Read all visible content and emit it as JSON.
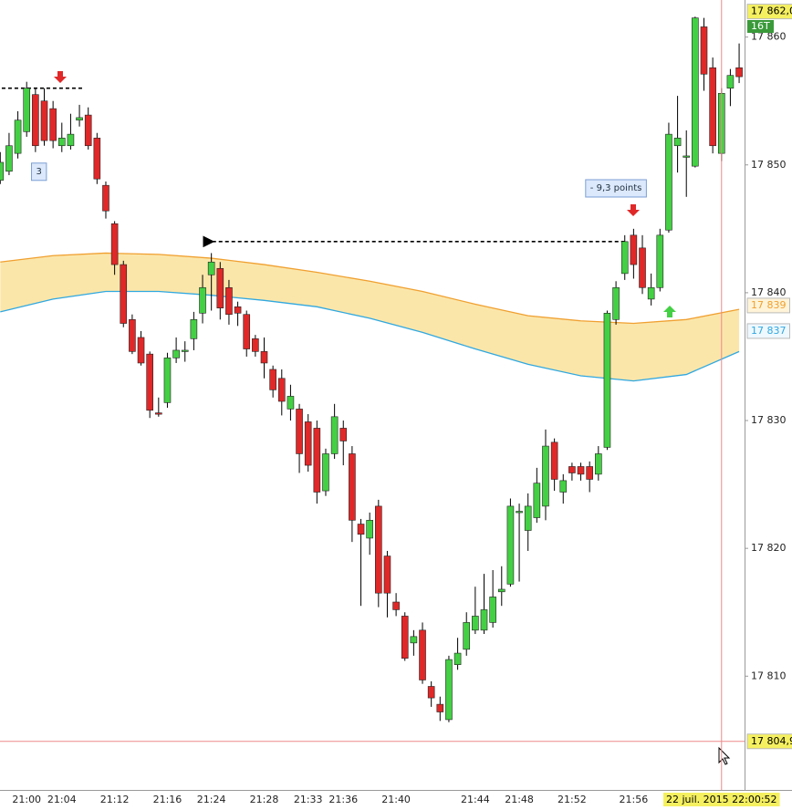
{
  "chart_data": {
    "type": "candlestick",
    "categories": [
      null,
      null,
      null,
      "21:00",
      null,
      null,
      null,
      "21:04",
      null,
      null,
      null,
      null,
      null,
      "21:12",
      null,
      null,
      null,
      null,
      null,
      "21:16",
      null,
      null,
      null,
      null,
      "21:24",
      null,
      null,
      null,
      null,
      null,
      "21:28",
      null,
      null,
      null,
      null,
      "21:33",
      null,
      null,
      null,
      "21:36",
      null,
      null,
      null,
      null,
      null,
      "21:40",
      null,
      null,
      null,
      null,
      null,
      null,
      null,
      null,
      "21:44",
      null,
      null,
      null,
      null,
      "21:48",
      null,
      null,
      null,
      null,
      null,
      "21:52",
      null,
      null,
      null,
      null,
      null,
      null,
      "21:56",
      null,
      null,
      null,
      null,
      null,
      null,
      null,
      null,
      null,
      null,
      null,
      null
    ],
    "open": [
      17848.8,
      17849.5,
      17850.9,
      17852.6,
      17855.5,
      17855,
      17854.4,
      17851.5,
      17851.5,
      17853.5,
      17853.9,
      17852.1,
      17848.4,
      17845.4,
      17842.2,
      17837.9,
      17836.5,
      17835.2,
      17830.6,
      17831.4,
      17834.9,
      17835.4,
      17836.4,
      17838.4,
      17841.4,
      17841.9,
      17840.4,
      17838.9,
      17838.3,
      17836.4,
      17835.4,
      17834,
      17833.3,
      17830.9,
      17830.9,
      17829.9,
      17829.4,
      17824.5,
      17827.4,
      17829.4,
      17827.4,
      17821.9,
      17820.8,
      17823.3,
      17819.4,
      17815.8,
      17814.7,
      17812.6,
      17813.6,
      17809.2,
      17807.8,
      17806.6,
      17810.9,
      17812.1,
      17813.6,
      17813.6,
      17814.2,
      17816.6,
      17817.2,
      17822.8,
      17821.4,
      17822.4,
      17823.3,
      17828.3,
      17824.4,
      17826.4,
      17826.4,
      17826.4,
      17825.8,
      17827.9,
      17837.9,
      17841.5,
      17844.5,
      17843.5,
      17839.5,
      17840.4,
      17844.9,
      17851.5,
      17850.6,
      17849.9,
      17860.8,
      17857.6,
      17850.9,
      17856,
      17857.6
    ],
    "high": [
      17851,
      17852.5,
      17854.2,
      17856.5,
      17856,
      17856,
      17855,
      17853.3,
      17854,
      17854.7,
      17854.5,
      17852.5,
      17848.7,
      17845.6,
      17842.5,
      17838.3,
      17837,
      17835.4,
      17831.8,
      17835.3,
      17836.5,
      17836.2,
      17838.5,
      17841.4,
      17843.1,
      17842.4,
      17841,
      17839.3,
      17838.6,
      17836.7,
      17836.5,
      17834.3,
      17834,
      17832.8,
      17831.3,
      17830.5,
      17830,
      17827.8,
      17831.3,
      17830,
      17828,
      17822.3,
      17822.8,
      17823.8,
      17819.8,
      17816.5,
      17815,
      17813.6,
      17814.2,
      17809.6,
      17808.4,
      17811.6,
      17813,
      17815,
      17817,
      17818,
      17818.3,
      17818.6,
      17823.9,
      17823.5,
      17824.3,
      17826.3,
      17829.3,
      17828.6,
      17825.8,
      17826.7,
      17826.7,
      17826.8,
      17828,
      17838.6,
      17840.9,
      17844.5,
      17845,
      17844.5,
      17841.5,
      17845,
      17853.3,
      17855.4,
      17852.7,
      17861.6,
      17861.5,
      17858.4,
      17856,
      17857.5,
      17859.5
    ],
    "low": [
      17848.5,
      17849.2,
      17850.5,
      17852.2,
      17851,
      17851.5,
      17851.3,
      17851,
      17851.2,
      17853,
      17851.2,
      17848.5,
      17845.8,
      17841.4,
      17837.3,
      17835.2,
      17834.3,
      17830.2,
      17830.3,
      17831,
      17834.5,
      17834.6,
      17835.5,
      17837.6,
      17838.6,
      17837.9,
      17837.5,
      17837.4,
      17835,
      17835,
      17833.3,
      17831.8,
      17830.4,
      17830,
      17825.9,
      17826,
      17823.5,
      17824.1,
      17827,
      17826.5,
      17820.5,
      17815.5,
      17819.5,
      17815.4,
      17814.6,
      17814.7,
      17811.2,
      17811.6,
      17809.4,
      17807.6,
      17806.5,
      17806.4,
      17810.5,
      17811.6,
      17813.3,
      17813.3,
      17813.8,
      17815.5,
      17817,
      17817.4,
      17819.8,
      17822,
      17822.2,
      17824.5,
      17823.5,
      17825.3,
      17825.3,
      17824.4,
      17825.3,
      17827.7,
      17837.5,
      17841,
      17841.1,
      17839.9,
      17839,
      17840.1,
      17844.7,
      17849.4,
      17847.5,
      17849.8,
      17855.8,
      17850.9,
      17850.3,
      17854.6,
      17856.4
    ],
    "close": [
      17850.2,
      17851.5,
      17853.5,
      17856,
      17851.5,
      17851.9,
      17851.9,
      17852.1,
      17852.4,
      17853.7,
      17851.5,
      17848.9,
      17846.4,
      17842.2,
      17837.6,
      17835.4,
      17834.5,
      17830.8,
      17830.5,
      17834.9,
      17835.5,
      17835.5,
      17837.9,
      17840.4,
      17842.4,
      17838.8,
      17838.3,
      17838.4,
      17835.6,
      17835.4,
      17834.5,
      17832.4,
      17831.5,
      17831.9,
      17827.4,
      17826.5,
      17824.4,
      17827.4,
      17830.3,
      17828.4,
      17822.2,
      17821.1,
      17822.2,
      17816.5,
      17816.5,
      17815.2,
      17811.4,
      17813.1,
      17809.7,
      17808.3,
      17807.2,
      17811.3,
      17811.8,
      17814.2,
      17814.7,
      17815.2,
      17816.2,
      17816.8,
      17823.3,
      17822.9,
      17823.3,
      17825.1,
      17828,
      17825.4,
      17825.3,
      17825.9,
      17825.8,
      17825.4,
      17827.4,
      17838.4,
      17840.4,
      17844,
      17842.2,
      17840.4,
      17840.4,
      17844.5,
      17852.4,
      17852.1,
      17850.7,
      17861.5,
      17857.1,
      17851.5,
      17855.6,
      17857,
      17856.9
    ],
    "up_color": "#44d044",
    "down_color": "#e02828",
    "bands": [
      {
        "color": "#f0a030",
        "x": [
          0,
          6,
          12,
          18,
          24,
          30,
          36,
          42,
          48,
          54,
          60,
          66,
          72,
          78,
          84
        ],
        "values": [
          17842.4,
          17842.9,
          17843.1,
          17843.0,
          17842.7,
          17842.2,
          17841.6,
          17840.9,
          17840.1,
          17839.1,
          17838.2,
          17837.8,
          17837.6,
          17837.9,
          17838.7
        ]
      },
      {
        "color": "#30a8e0",
        "x": [
          0,
          6,
          12,
          18,
          24,
          30,
          36,
          42,
          48,
          54,
          60,
          66,
          72,
          78,
          84
        ],
        "values": [
          17838.5,
          17839.5,
          17840.1,
          17840.1,
          17839.8,
          17839.4,
          17838.9,
          17838.0,
          17836.9,
          17835.6,
          17834.4,
          17833.5,
          17833.1,
          17833.6,
          17835.4
        ]
      }
    ],
    "band_fill": "#fbe6aa",
    "ylim": [
      17801.1,
      17862.9
    ],
    "yticks": [
      {
        "value": 17810,
        "label": "17 810"
      },
      {
        "value": 17820,
        "label": "17 820"
      },
      {
        "value": 17830,
        "label": "17 830"
      },
      {
        "value": 17840,
        "label": "17 840"
      },
      {
        "value": 17850,
        "label": "17 850"
      },
      {
        "value": 17860,
        "label": "17 860"
      }
    ],
    "price_badges": [
      {
        "value": 17862.0,
        "label": "17 862,0",
        "color": "#f5f060"
      },
      {
        "value": 17839,
        "label": "17 839",
        "color": "#fff4d8",
        "text_color": "#f0a030"
      },
      {
        "value": 17837,
        "label": "17 837",
        "color": "#eef8ff",
        "text_color": "#30a8e0"
      }
    ],
    "tick_count_label": "16T",
    "levels": [
      {
        "value": 17856,
        "x": [
          0,
          9.3
        ]
      },
      {
        "value": 17844,
        "x": [
          24.2,
          71
        ]
      }
    ],
    "annotations": [
      {
        "text": "3",
        "x": 4.4,
        "y": 17849.5
      },
      {
        "text": "- 9,3 points",
        "x": 70,
        "y": 17848.2
      }
    ],
    "crosshair": {
      "x": 82,
      "value": 17804.9,
      "label": "17 804,9",
      "time": "22 juil. 2015 22:00:52"
    }
  }
}
